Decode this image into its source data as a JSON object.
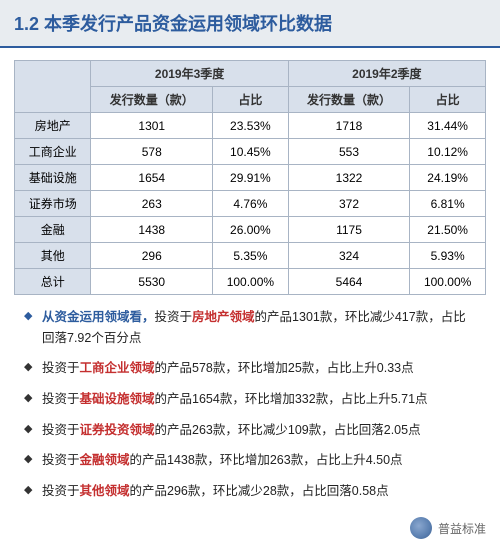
{
  "title": "1.2  本季发行产品资金运用领域环比数据",
  "table": {
    "period1": "2019年3季度",
    "period2": "2019年2季度",
    "col_qty": "发行数量（款）",
    "col_pct": "占比",
    "rows": [
      {
        "name": "房地产",
        "q1_qty": "1301",
        "q1_pct": "23.53%",
        "q2_qty": "1718",
        "q2_pct": "31.44%"
      },
      {
        "name": "工商企业",
        "q1_qty": "578",
        "q1_pct": "10.45%",
        "q2_qty": "553",
        "q2_pct": "10.12%"
      },
      {
        "name": "基础设施",
        "q1_qty": "1654",
        "q1_pct": "29.91%",
        "q2_qty": "1322",
        "q2_pct": "24.19%"
      },
      {
        "name": "证券市场",
        "q1_qty": "263",
        "q1_pct": "4.76%",
        "q2_qty": "372",
        "q2_pct": "6.81%"
      },
      {
        "name": "金融",
        "q1_qty": "1438",
        "q1_pct": "26.00%",
        "q2_qty": "1175",
        "q2_pct": "21.50%"
      },
      {
        "name": "其他",
        "q1_qty": "296",
        "q1_pct": "5.35%",
        "q2_qty": "324",
        "q2_pct": "5.93%"
      },
      {
        "name": "总计",
        "q1_qty": "5530",
        "q1_pct": "100.00%",
        "q2_qty": "5464",
        "q2_pct": "100.00%"
      }
    ]
  },
  "bullets": [
    {
      "lead_blue": "从资金运用领域看，",
      "pre": "投资于",
      "key": "房地产领域",
      "post": "的产品1301款，环比减少417款，占比回落7.92个百分点"
    },
    {
      "pre": "投资于",
      "key": "工商企业领域",
      "post": "的产品578款，环比增加25款，占比上升0.33点"
    },
    {
      "pre": "投资于",
      "key": "基础设施领域",
      "post": "的产品1654款，环比增加332款，占比上升5.71点"
    },
    {
      "pre": "投资于",
      "key": "证券投资领域",
      "post": "的产品263款，环比减少109款，占比回落2.05点"
    },
    {
      "pre": "投资于",
      "key": "金融领域",
      "post": "的产品1438款，环比增加263款，占比上升4.50点"
    },
    {
      "pre": "投资于",
      "key": "其他领域",
      "post": "的产品296款，环比减少28款，占比回落0.58点"
    }
  ],
  "footer": {
    "brand": "普益标准"
  },
  "colors": {
    "accent": "#2d5c9e",
    "red": "#c42f2f",
    "header_bg": "#d8e0eb",
    "border": "#a8b4c4"
  }
}
